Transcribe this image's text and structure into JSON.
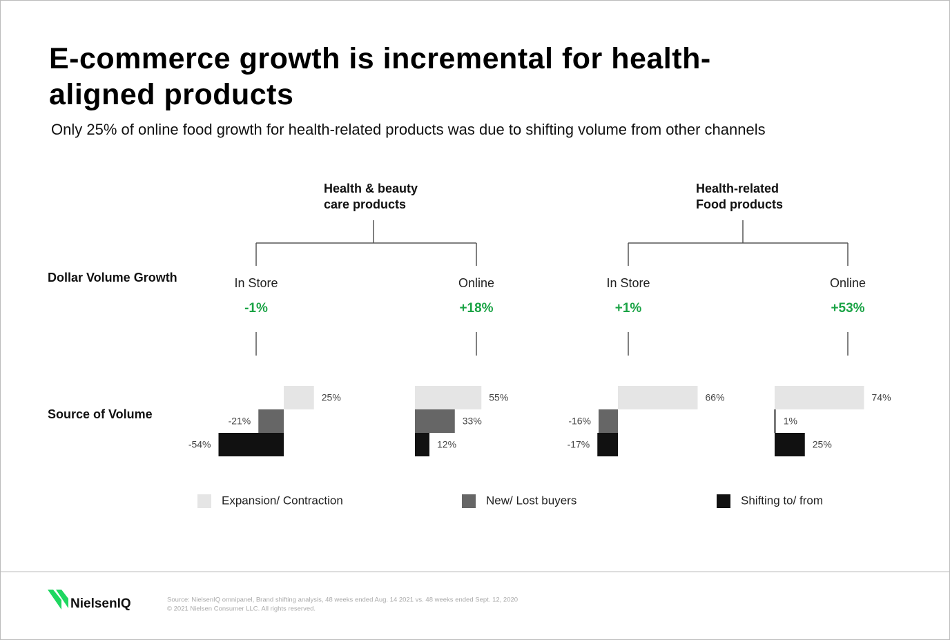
{
  "header": {
    "title": "E-commerce growth is incremental for health-aligned products",
    "subtitle": "Only 25% of online food growth for health-related products was due to shifting volume from other channels"
  },
  "row_labels": [
    "Dollar Volume Growth",
    "Source of Volume"
  ],
  "groups": [
    {
      "title": "Health & beauty care products",
      "channels": [
        {
          "name": "In Store",
          "growth": "-1%",
          "values": [
            25,
            -21,
            -54
          ],
          "value_labels": [
            "25%",
            "-21%",
            "-54%"
          ]
        },
        {
          "name": "Online",
          "growth": "+18%",
          "values": [
            55,
            33,
            12
          ],
          "value_labels": [
            "55%",
            "33%",
            "12%"
          ]
        }
      ]
    },
    {
      "title": "Health-related Food products",
      "channels": [
        {
          "name": "In Store",
          "growth": "+1%",
          "values": [
            66,
            -16,
            -17
          ],
          "value_labels": [
            "66%",
            "-16%",
            "-17%"
          ]
        },
        {
          "name": "Online",
          "growth": "+53%",
          "values": [
            74,
            1,
            25
          ],
          "value_labels": [
            "74%",
            "1%",
            "25%"
          ]
        }
      ]
    }
  ],
  "legend": [
    {
      "name": "Expansion/ Contraction",
      "color": "#e5e5e5"
    },
    {
      "name": "New/ Lost buyers",
      "color": "#666666"
    },
    {
      "name": "Shifting to/ from",
      "color": "#111111"
    }
  ],
  "footer": {
    "brand": "NielsenIQ",
    "source": "Source: NielsenIQ omnipanel, Brand shifting analysis, 48 weeks ended Aug. 14 2021 vs. 48 weeks ended Sept. 12, 2020",
    "copyright": "© 2021 Nielsen Consumer LLC. All rights reserved."
  }
}
